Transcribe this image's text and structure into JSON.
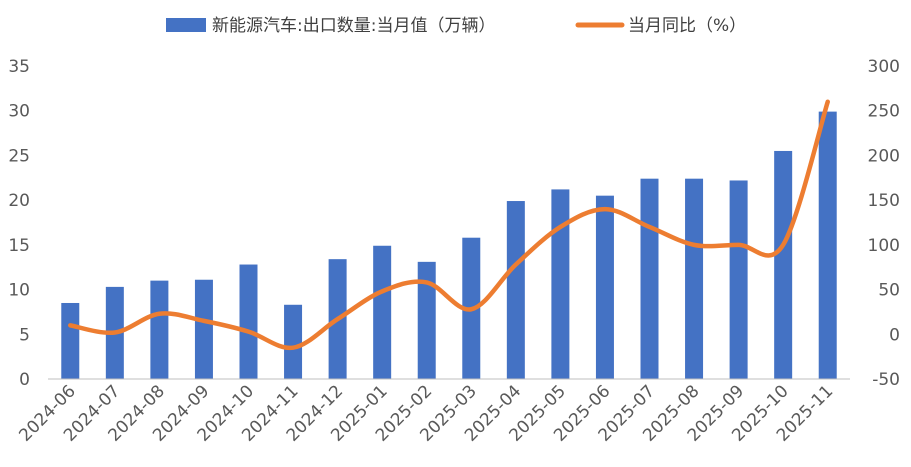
{
  "chart_data": {
    "type": "bar",
    "categories": [
      "2024-06",
      "2024-07",
      "2024-08",
      "2024-09",
      "2024-10",
      "2024-11",
      "2024-12",
      "2025-01",
      "2025-02",
      "2025-03",
      "2025-04",
      "2025-05",
      "2025-06",
      "2025-07",
      "2025-08",
      "2025-09",
      "2025-10",
      "2025-11"
    ],
    "series": [
      {
        "name": "新能源汽车:出口数量:当月值（万辆）",
        "type": "bar",
        "axis": "left",
        "color": "#4472C4",
        "values": [
          8.5,
          10.3,
          11.0,
          11.1,
          12.8,
          8.3,
          13.4,
          14.9,
          13.1,
          15.8,
          19.9,
          21.2,
          20.5,
          22.4,
          22.4,
          22.2,
          25.5,
          29.9
        ]
      },
      {
        "name": "当月同比（%）",
        "type": "line",
        "axis": "right",
        "color": "#ED7D31",
        "values": [
          10,
          2,
          23,
          15,
          3,
          -15,
          17,
          48,
          58,
          28,
          78,
          120,
          140,
          120,
          100,
          100,
          100,
          260
        ]
      }
    ],
    "y_left": {
      "min": 0,
      "max": 35,
      "ticks": [
        "0",
        "5",
        "10",
        "15",
        "20",
        "25",
        "30",
        "35"
      ]
    },
    "y_right": {
      "min": -50,
      "max": 300,
      "ticks": [
        "-50",
        "0",
        "50",
        "100",
        "150",
        "200",
        "250",
        "300"
      ]
    },
    "grid": false,
    "legend_position": "top"
  }
}
